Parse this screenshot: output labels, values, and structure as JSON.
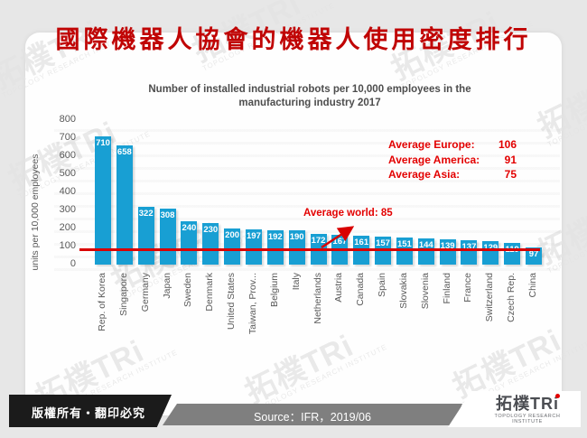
{
  "page": {
    "title": "國際機器人協會的機器人使用密度排行",
    "watermark": {
      "brand": "拓樸TRi",
      "caption": "TOPOLOGY RESEARCH INSTITUTE"
    }
  },
  "chart_data": {
    "type": "bar",
    "title": "Number of installed industrial robots per 10,000 employees in the manufacturing industry 2017",
    "title_lines": [
      "Number of installed industrial robots per 10,000 employees in the",
      "manufacturing industry 2017"
    ],
    "ylabel": "units per 10,000 employees",
    "xlabel": "",
    "ylim": [
      0,
      800
    ],
    "yticks": [
      0,
      100,
      200,
      300,
      400,
      500,
      600,
      700,
      800
    ],
    "grid": false,
    "legend": "none",
    "bar_color": "#189fd3",
    "categories": [
      "Rep. of Korea",
      "Singapore",
      "Germany",
      "Japan",
      "Sweden",
      "Denmark",
      "United States",
      "Taiwan, Prov...",
      "Belgium",
      "Italy",
      "Netherlands",
      "Austria",
      "Canada",
      "Spain",
      "Slovakia",
      "Slovenia",
      "Finland",
      "France",
      "Switzerland",
      "Czech Rep.",
      "China"
    ],
    "values": [
      710,
      658,
      322,
      308,
      240,
      230,
      200,
      197,
      192,
      190,
      172,
      167,
      161,
      157,
      151,
      144,
      139,
      137,
      129,
      119,
      97
    ],
    "annotations": {
      "world_line": {
        "label": "Average world: 85",
        "value": 85,
        "color": "#d90000"
      },
      "averages": [
        {
          "label": "Average Europe:",
          "value": "106"
        },
        {
          "label": "Average America:",
          "value": "91"
        },
        {
          "label": "Average Asia:",
          "value": "75"
        }
      ]
    }
  },
  "footer": {
    "copyright": "版權所有‧翻印必究",
    "source": "Source：IFR，2019/06",
    "logo": {
      "brand": "拓樸TRi",
      "caption": "TOPOLOGY RESEARCH INSTITUTE"
    }
  },
  "colors": {
    "title_red": "#c00404",
    "annotation_red": "#e30000",
    "bar_blue": "#189fd3",
    "axis_gray": "#595959",
    "footer_black": "#1b1b1b",
    "footer_gray": "#7f7f7f"
  }
}
